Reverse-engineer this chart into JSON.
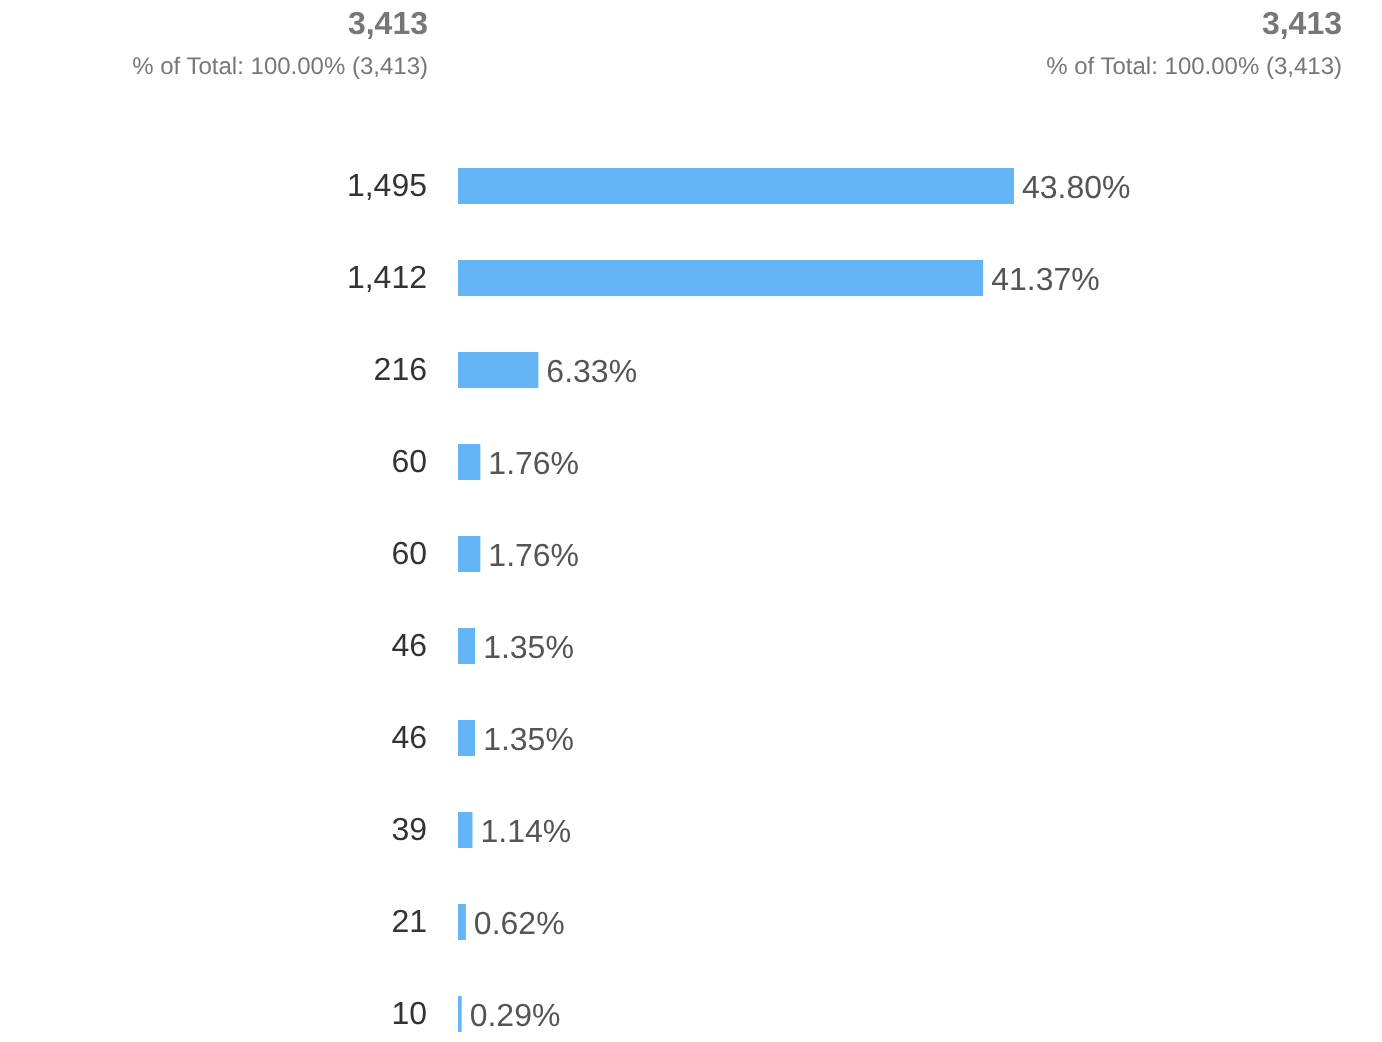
{
  "chart_data": {
    "type": "bar",
    "orientation": "horizontal",
    "annotations": [
      "3,413",
      "% of Total: 100.00% (3,413)",
      "3,413",
      "% of Total: 100.00% (3,413)"
    ],
    "categories": [
      "1,495",
      "1,412",
      "216",
      "60",
      "60",
      "46",
      "46",
      "39",
      "21",
      "10"
    ],
    "values": [
      43.8,
      41.37,
      6.33,
      1.76,
      1.76,
      1.35,
      1.35,
      1.14,
      0.62,
      0.29
    ],
    "value_labels": [
      "43.80%",
      "41.37%",
      "6.33%",
      "1.76%",
      "1.76%",
      "1.35%",
      "1.35%",
      "1.14%",
      "0.62%",
      "0.29%"
    ],
    "color": "#64b5f6"
  }
}
